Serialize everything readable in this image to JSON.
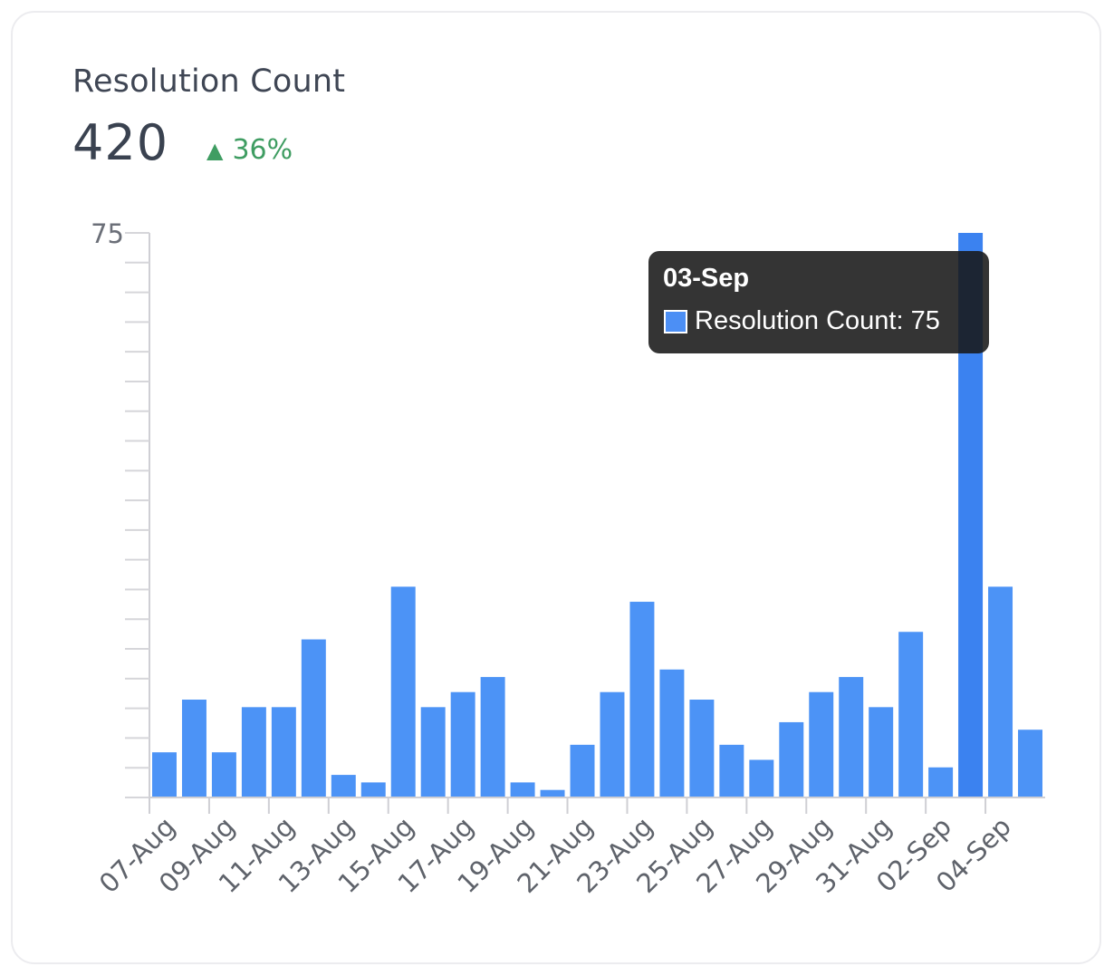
{
  "card": {
    "title": "Resolution Count",
    "metric_value": "420",
    "delta": {
      "icon": "triangle-up-icon",
      "text": "36%",
      "color": "#3f9d62"
    }
  },
  "tooltip": {
    "title": "03-Sep",
    "series_label": "Resolution Count: 75",
    "swatch_color": "#4c8ff5"
  },
  "chart_data": {
    "type": "bar",
    "categories": [
      "07-Aug",
      "08-Aug",
      "09-Aug",
      "10-Aug",
      "11-Aug",
      "12-Aug",
      "13-Aug",
      "14-Aug",
      "15-Aug",
      "16-Aug",
      "17-Aug",
      "18-Aug",
      "19-Aug",
      "20-Aug",
      "21-Aug",
      "22-Aug",
      "23-Aug",
      "24-Aug",
      "25-Aug",
      "26-Aug",
      "27-Aug",
      "28-Aug",
      "29-Aug",
      "30-Aug",
      "31-Aug",
      "01-Sep",
      "02-Sep",
      "03-Sep",
      "04-Sep",
      "05-Sep"
    ],
    "tick_labels": [
      "07-Aug",
      "09-Aug",
      "11-Aug",
      "13-Aug",
      "15-Aug",
      "17-Aug",
      "19-Aug",
      "21-Aug",
      "23-Aug",
      "25-Aug",
      "27-Aug",
      "29-Aug",
      "31-Aug",
      "02-Sep",
      "04-Sep"
    ],
    "series": [
      {
        "values": [
          6,
          13,
          6,
          12,
          12,
          21,
          3,
          2,
          28,
          12,
          14,
          16,
          2,
          1,
          7,
          14,
          26,
          17,
          13,
          7,
          5,
          10,
          14,
          16,
          12,
          22,
          4,
          75,
          28,
          9
        ],
        "color": "#4c93f6",
        "highlight_color": "#3b82f0"
      }
    ],
    "highlighted_index": 27,
    "y_tick_labels": [
      "75"
    ],
    "ylim": [
      0,
      75
    ],
    "xlabel": "",
    "ylabel": "",
    "grid": false,
    "legend": "none"
  }
}
